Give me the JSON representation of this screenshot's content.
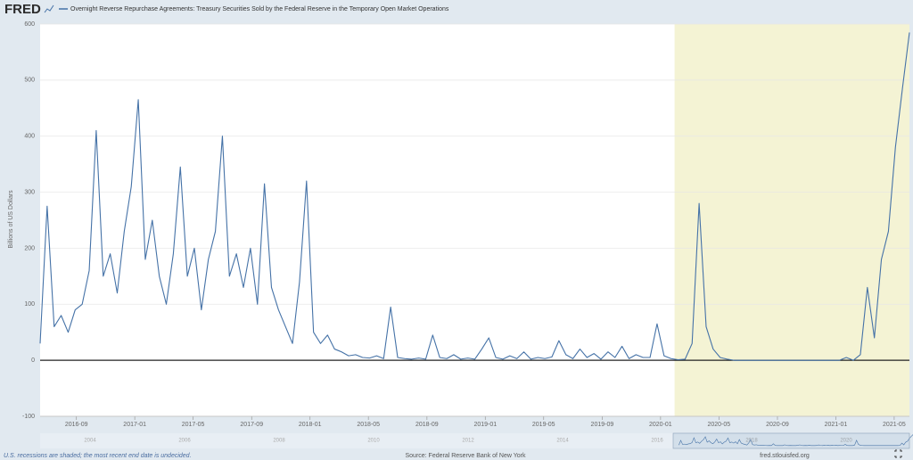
{
  "chart_data": {
    "type": "line",
    "logo": "FRED",
    "ylabel": "Billions of US Dollars",
    "footer_note": "U.S. recessions are shaded; the most recent end date is undecided.",
    "source": "Source: Federal Reserve Bank of New York",
    "site": "fred.stlouisfed.org",
    "ylim": [
      -100,
      600
    ],
    "yticks": [
      -100,
      0,
      100,
      200,
      300,
      400,
      500,
      600
    ],
    "xlim": [
      2016.46,
      2021.42
    ],
    "xticks": [
      {
        "value": 2016.667,
        "label": "2016-09"
      },
      {
        "value": 2017.0,
        "label": "2017-01"
      },
      {
        "value": 2017.333,
        "label": "2017-05"
      },
      {
        "value": 2017.667,
        "label": "2017-09"
      },
      {
        "value": 2018.0,
        "label": "2018-01"
      },
      {
        "value": 2018.333,
        "label": "2018-05"
      },
      {
        "value": 2018.667,
        "label": "2018-09"
      },
      {
        "value": 2019.0,
        "label": "2019-01"
      },
      {
        "value": 2019.333,
        "label": "2019-05"
      },
      {
        "value": 2019.667,
        "label": "2019-09"
      },
      {
        "value": 2020.0,
        "label": "2020-01"
      },
      {
        "value": 2020.333,
        "label": "2020-05"
      },
      {
        "value": 2020.667,
        "label": "2020-09"
      },
      {
        "value": 2021.0,
        "label": "2021-01"
      },
      {
        "value": 2021.333,
        "label": "2021-05"
      }
    ],
    "grid": true,
    "recession": [
      2020.08,
      2021.42
    ],
    "recession_color": "#f4f3d4",
    "navigator_years": [
      2004,
      2006,
      2008,
      2010,
      2012,
      2014,
      2016,
      2018,
      2020
    ],
    "x": [
      2016.46,
      2016.5,
      2016.54,
      2016.58,
      2016.62,
      2016.66,
      2016.7,
      2016.74,
      2016.78,
      2016.82,
      2016.86,
      2016.9,
      2016.94,
      2016.98,
      2017.02,
      2017.06,
      2017.1,
      2017.14,
      2017.18,
      2017.22,
      2017.26,
      2017.3,
      2017.34,
      2017.38,
      2017.42,
      2017.46,
      2017.5,
      2017.54,
      2017.58,
      2017.62,
      2017.66,
      2017.7,
      2017.74,
      2017.78,
      2017.82,
      2017.86,
      2017.9,
      2017.94,
      2017.98,
      2018.02,
      2018.06,
      2018.1,
      2018.14,
      2018.18,
      2018.22,
      2018.26,
      2018.3,
      2018.34,
      2018.38,
      2018.42,
      2018.46,
      2018.5,
      2018.54,
      2018.58,
      2018.62,
      2018.66,
      2018.7,
      2018.74,
      2018.78,
      2018.82,
      2018.86,
      2018.9,
      2018.94,
      2018.98,
      2019.02,
      2019.06,
      2019.1,
      2019.14,
      2019.18,
      2019.22,
      2019.26,
      2019.3,
      2019.34,
      2019.38,
      2019.42,
      2019.46,
      2019.5,
      2019.54,
      2019.58,
      2019.62,
      2019.66,
      2019.7,
      2019.74,
      2019.78,
      2019.82,
      2019.86,
      2019.9,
      2019.94,
      2019.98,
      2020.02,
      2020.06,
      2020.1,
      2020.14,
      2020.18,
      2020.22,
      2020.26,
      2020.3,
      2020.34,
      2020.38,
      2020.42,
      2020.46,
      2020.5,
      2020.54,
      2020.58,
      2020.62,
      2020.66,
      2020.7,
      2020.74,
      2020.78,
      2020.82,
      2020.86,
      2020.9,
      2020.94,
      2020.98,
      2021.02,
      2021.06,
      2021.1,
      2021.14,
      2021.18,
      2021.22,
      2021.26,
      2021.3,
      2021.34,
      2021.38,
      2021.42
    ],
    "series": [
      {
        "name": "Overnight Reverse Repurchase Agreements: Treasury Securities Sold by the Federal Reserve in the Temporary Open Market Operations",
        "color": "#4572a7",
        "values": [
          30,
          275,
          60,
          80,
          50,
          90,
          100,
          160,
          410,
          150,
          190,
          120,
          230,
          310,
          465,
          180,
          250,
          150,
          100,
          190,
          345,
          150,
          200,
          90,
          180,
          230,
          400,
          150,
          190,
          130,
          200,
          100,
          315,
          130,
          90,
          60,
          30,
          140,
          320,
          50,
          30,
          45,
          20,
          15,
          8,
          10,
          5,
          4,
          8,
          3,
          95,
          5,
          3,
          2,
          4,
          2,
          45,
          5,
          3,
          10,
          2,
          4,
          2,
          20,
          40,
          5,
          2,
          8,
          3,
          15,
          2,
          5,
          3,
          6,
          35,
          10,
          3,
          20,
          5,
          12,
          2,
          15,
          5,
          25,
          3,
          10,
          5,
          5,
          65,
          8,
          3,
          1,
          2,
          30,
          280,
          60,
          20,
          5,
          2,
          0,
          0,
          0,
          0,
          0,
          0,
          0,
          0,
          0,
          0,
          0,
          0,
          0,
          0,
          0,
          0,
          5,
          0,
          10,
          130,
          40,
          180,
          230,
          380,
          485,
          585
        ]
      }
    ]
  }
}
